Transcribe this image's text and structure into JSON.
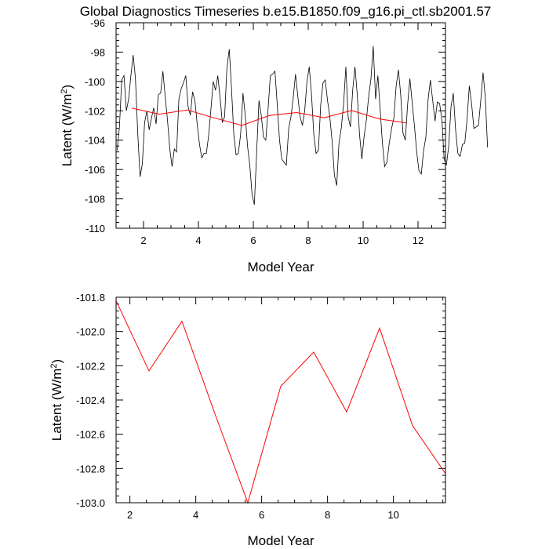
{
  "title": "Global Diagnostics Timeseries b.e15.B1850.f09_g16.pi_ctl.sb2001.57",
  "colors": {
    "monthly_line": "#000000",
    "annual_line": "#ff0000",
    "axis": "#000000"
  },
  "chart_data": [
    {
      "type": "line",
      "xlabel": "Model Year",
      "ylabel": "Latent (W/m2)",
      "ylabel_parts": {
        "base": "Latent (W/m",
        "superscript": "2",
        "end": ")"
      },
      "xlim": [
        1,
        13
      ],
      "ylim": [
        -110,
        -96
      ],
      "xticks": [
        2,
        4,
        6,
        8,
        10,
        12
      ],
      "yticks": [
        -110,
        -108,
        -106,
        -104,
        -102,
        -100,
        -98,
        -96
      ],
      "series": [
        {
          "name": "monthly",
          "color": "#000000",
          "x_start": 1.04,
          "x_step": 0.0833,
          "values": [
            -104.7,
            -103.1,
            -99.9,
            -99.6,
            -102.0,
            -101.2,
            -99.6,
            -98.2,
            -99.8,
            -103.5,
            -106.5,
            -105.6,
            -102.8,
            -102.0,
            -103.3,
            -102.5,
            -101.8,
            -102.9,
            -100.9,
            -100.8,
            -99.3,
            -101.0,
            -102.6,
            -104.6,
            -105.8,
            -104.6,
            -104.8,
            -101.2,
            -100.5,
            -100.1,
            -99.6,
            -101.7,
            -102.3,
            -100.7,
            -101.3,
            -102.9,
            -104.3,
            -105.2,
            -104.9,
            -104.9,
            -103.7,
            -101.9,
            -100.0,
            -100.6,
            -99.6,
            -101.1,
            -102.8,
            -102.4,
            -99.1,
            -97.8,
            -100.5,
            -103.6,
            -105.0,
            -104.9,
            -103.6,
            -100.8,
            -102.3,
            -104.4,
            -105.7,
            -107.7,
            -108.4,
            -104.9,
            -101.3,
            -102.3,
            -103.8,
            -104.0,
            -101.9,
            -99.6,
            -99.5,
            -99.3,
            -101.6,
            -104.0,
            -105.3,
            -105.5,
            -105.7,
            -103.2,
            -102.4,
            -101.1,
            -99.5,
            -101.0,
            -102.4,
            -103.0,
            -102.0,
            -100.0,
            -99.0,
            -100.9,
            -103.6,
            -104.9,
            -104.7,
            -101.6,
            -100.1,
            -99.9,
            -101.3,
            -102.4,
            -104.1,
            -106.4,
            -107.1,
            -104.2,
            -103.2,
            -101.6,
            -99.0,
            -102.4,
            -103.1,
            -100.6,
            -99.0,
            -100.9,
            -103.6,
            -105.3,
            -103.7,
            -102.6,
            -101.0,
            -99.8,
            -97.6,
            -101.2,
            -99.6,
            -101.9,
            -104.2,
            -105.8,
            -105.5,
            -104.2,
            -103.2,
            -102.5,
            -100.3,
            -99.2,
            -100.9,
            -103.5,
            -104.0,
            -101.6,
            -99.8,
            -101.4,
            -103.0,
            -104.8,
            -106.1,
            -106.3,
            -104.7,
            -103.8,
            -101.2,
            -99.9,
            -101.3,
            -102.7,
            -101.4,
            -101.5,
            -102.6,
            -105.3,
            -105.7,
            -104.4,
            -101.7,
            -100.8,
            -103.3,
            -104.9,
            -105.1,
            -104.3,
            -104.2,
            -102.6,
            -100.3,
            -101.5,
            -103.2,
            -103.1,
            -103.0,
            -101.3,
            -99.4,
            -101.1,
            -104.5
          ]
        },
        {
          "name": "annual",
          "color": "#ff0000",
          "x": [
            1.58,
            2.58,
            3.58,
            4.58,
            5.58,
            6.58,
            7.58,
            8.58,
            9.58,
            10.58,
            11.58
          ],
          "values": [
            -101.82,
            -102.23,
            -101.94,
            -102.48,
            -103.0,
            -102.32,
            -102.12,
            -102.47,
            -101.98,
            -102.55,
            -102.83
          ]
        }
      ]
    },
    {
      "type": "line",
      "xlabel": "Model Year",
      "ylabel": "Latent (W/m2)",
      "ylabel_parts": {
        "base": "Latent (W/m",
        "superscript": "2",
        "end": ")"
      },
      "xlim": [
        1.58,
        11.58
      ],
      "ylim": [
        -103.0,
        -101.8
      ],
      "xticks": [
        2,
        4,
        6,
        8,
        10
      ],
      "yticks": [
        -103.0,
        -102.8,
        -102.6,
        -102.4,
        -102.2,
        -102.0,
        -101.8
      ],
      "ytick_labels": [
        "-103.0",
        "-102.8",
        "-102.6",
        "-102.4",
        "-102.2",
        "-102.0",
        "-101.8"
      ],
      "series": [
        {
          "name": "annual",
          "color": "#ff0000",
          "x": [
            1.58,
            2.58,
            3.58,
            4.58,
            5.58,
            6.58,
            7.58,
            8.58,
            9.58,
            10.58,
            11.58
          ],
          "values": [
            -101.82,
            -102.23,
            -101.94,
            -102.48,
            -103.0,
            -102.32,
            -102.12,
            -102.47,
            -101.98,
            -102.55,
            -102.83
          ]
        }
      ]
    }
  ]
}
